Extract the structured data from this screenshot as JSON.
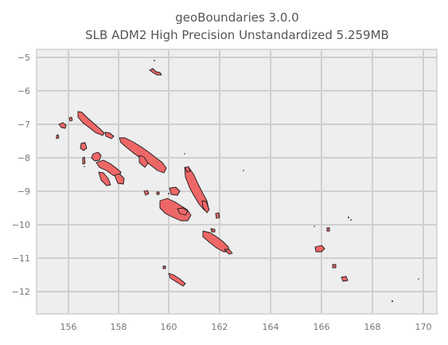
{
  "title": {
    "line1": "geoBoundaries 3.0.0",
    "line2": "SLB ADM2 High Precision Unstandardized 5.259MB"
  },
  "axes": {
    "x_ticks": [
      "156",
      "158",
      "160",
      "162",
      "164",
      "166",
      "168",
      "170"
    ],
    "y_ticks": [
      "−5",
      "−6",
      "−7",
      "−8",
      "−9",
      "−10",
      "−11",
      "−12"
    ]
  },
  "colors": {
    "land_fill": "#ee6767",
    "land_edge": "#1a1a1a",
    "plot_bg": "#eeeeee",
    "grid": "#cfcfcf"
  },
  "map": {
    "country": "SLB",
    "admin_level": "ADM2",
    "x_range": [
      154.8,
      170.5
    ],
    "y_range": [
      -12.7,
      -4.8
    ]
  }
}
